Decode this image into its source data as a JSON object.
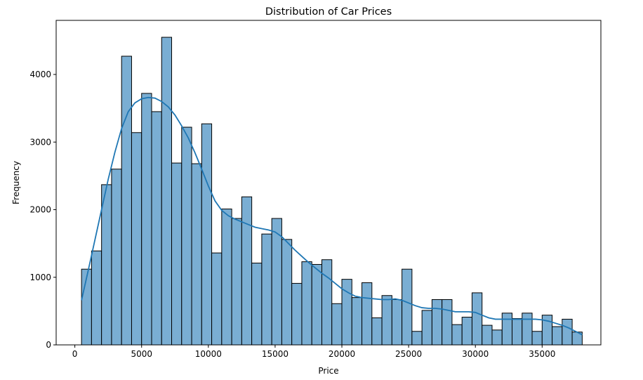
{
  "chart_data": {
    "type": "bar",
    "title": "Distribution of Car Prices",
    "xlabel": "Price",
    "ylabel": "Frequency",
    "xlim": [
      -1400,
      39400
    ],
    "ylim": [
      0,
      4800
    ],
    "xticks": [
      0,
      5000,
      10000,
      15000,
      20000,
      25000,
      30000,
      35000
    ],
    "yticks": [
      0,
      1000,
      2000,
      3000,
      4000
    ],
    "grid": false,
    "legend": "none",
    "bar_color": "#7aaed3",
    "bar_edge_color": "#000000",
    "kde_color": "#1f77b4",
    "bin_start": 500,
    "bin_width": 750,
    "values": [
      1120,
      1390,
      2370,
      2600,
      4270,
      3140,
      3720,
      3450,
      4550,
      2690,
      3220,
      2680,
      3270,
      1360,
      2010,
      1870,
      2190,
      1210,
      1640,
      1870,
      1560,
      910,
      1230,
      1190,
      1260,
      610,
      970,
      700,
      920,
      400,
      730,
      670,
      1120,
      200,
      510,
      670,
      670,
      300,
      410,
      770,
      290,
      220,
      470,
      390,
      470,
      200,
      440,
      270,
      380,
      190
    ],
    "kde": {
      "x": [
        500,
        1000,
        1500,
        2000,
        2500,
        3000,
        3500,
        4000,
        4500,
        5000,
        5500,
        6000,
        6500,
        7000,
        7500,
        8000,
        8500,
        9000,
        9500,
        10000,
        10500,
        11000,
        11500,
        12000,
        12500,
        13000,
        13500,
        14000,
        14500,
        15000,
        15500,
        16000,
        16500,
        17000,
        17500,
        18000,
        18500,
        19000,
        19500,
        20000,
        20500,
        21000,
        21500,
        22000,
        22500,
        23000,
        23500,
        24000,
        24500,
        25000,
        25500,
        26000,
        26500,
        27000,
        27500,
        28000,
        28500,
        29000,
        29500,
        30000,
        30500,
        31000,
        31500,
        32000,
        32500,
        33000,
        33500,
        34000,
        34500,
        35000,
        35500,
        36000,
        36500,
        37000,
        37500,
        38000
      ],
      "y": [
        660,
        1100,
        1550,
        2000,
        2450,
        2850,
        3200,
        3450,
        3580,
        3640,
        3660,
        3650,
        3600,
        3520,
        3400,
        3240,
        3060,
        2840,
        2600,
        2350,
        2130,
        1990,
        1910,
        1860,
        1820,
        1780,
        1740,
        1720,
        1700,
        1670,
        1600,
        1500,
        1400,
        1310,
        1220,
        1140,
        1060,
        990,
        910,
        830,
        770,
        720,
        700,
        690,
        680,
        670,
        670,
        680,
        660,
        620,
        580,
        550,
        540,
        540,
        530,
        510,
        490,
        490,
        490,
        480,
        440,
        400,
        380,
        380,
        380,
        380,
        380,
        380,
        380,
        370,
        350,
        320,
        290,
        250,
        200,
        150
      ]
    }
  }
}
